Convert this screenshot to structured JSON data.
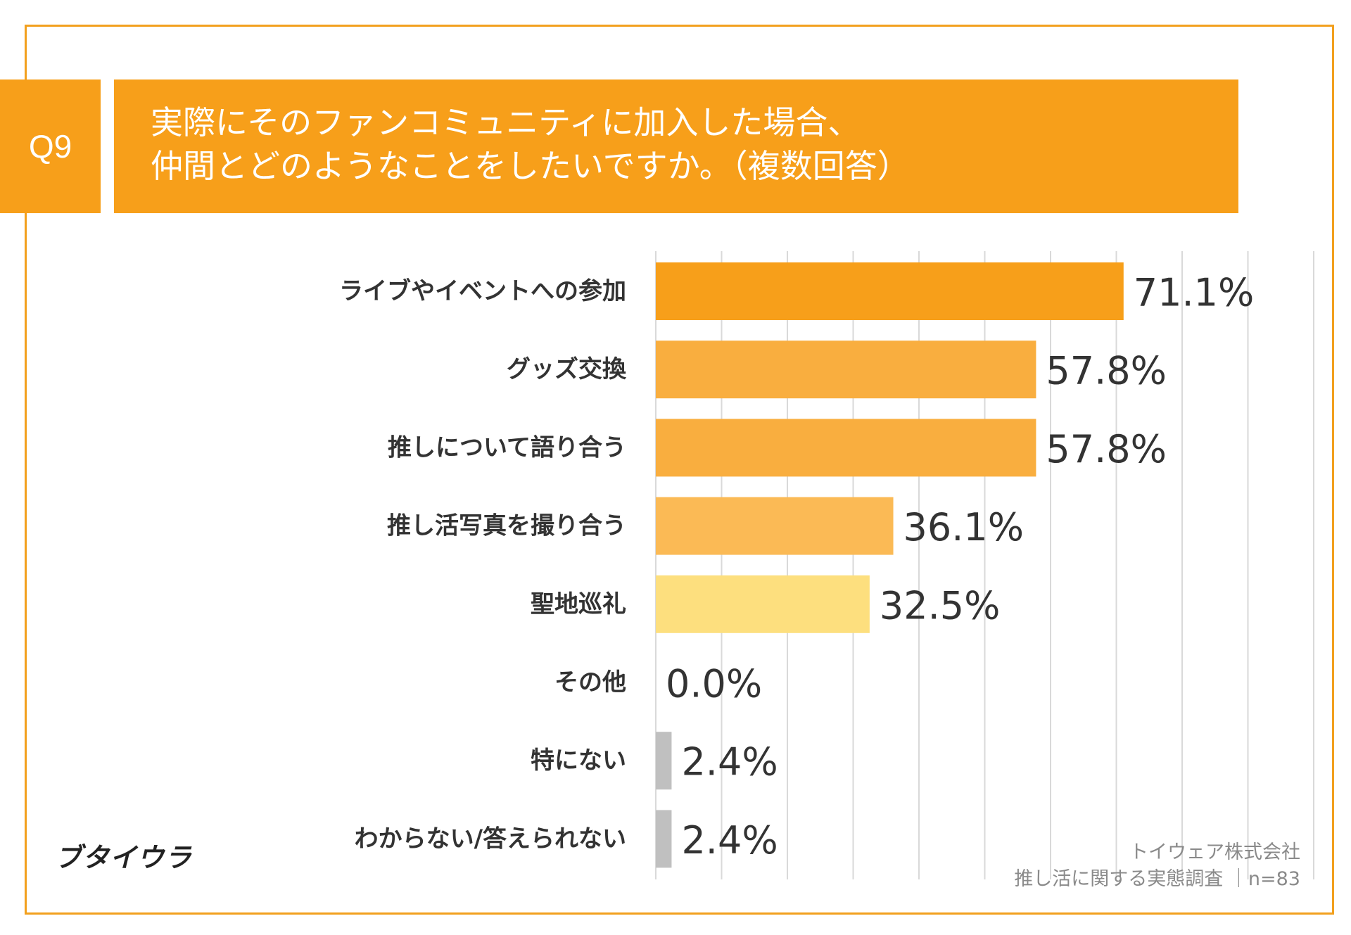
{
  "question": {
    "badge": "Q9",
    "title_lines": [
      "実際にそのファンコミュニティに加入した場合、",
      "仲間とどのようなことをしたいですか。（複数回答）"
    ]
  },
  "chart_data": {
    "type": "bar",
    "orientation": "horizontal",
    "categories": [
      "ライブやイベントへの参加",
      "グッズ交換",
      "推しについて語り合う",
      "推し活写真を撮り合う",
      "聖地巡礼",
      "その他",
      "特にない",
      "わからない/答えられない"
    ],
    "values": [
      71.1,
      57.8,
      57.8,
      36.1,
      32.5,
      0.0,
      2.4,
      2.4
    ],
    "value_labels": [
      "71.1%",
      "57.8%",
      "57.8%",
      "36.1%",
      "32.5%",
      "0.0%",
      "2.4%",
      "2.4%"
    ],
    "bar_colors": [
      "#F79F1A",
      "#F9AE3F",
      "#F9AE3F",
      "#FBBA55",
      "#FDDF7E",
      "#C0C0C0",
      "#C0C0C0",
      "#C0C0C0"
    ],
    "xlim": [
      0,
      100
    ],
    "grid_step": 10,
    "grid": true,
    "unit": "%"
  },
  "footer": {
    "logo": "ブタイウラ",
    "source_line1": "トイウェア株式会社",
    "source_line2": "推し活に関する実態調査 ｜n=83"
  },
  "colors": {
    "accent": "#F79F1A",
    "frame": "#F2A01E",
    "grid": "#D9D9D9",
    "text": "#333333"
  }
}
